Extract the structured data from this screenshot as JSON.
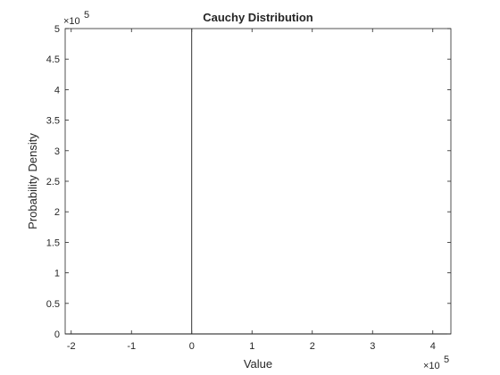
{
  "chart_data": {
    "type": "line",
    "title": "Cauchy Distribution",
    "xlabel": "Value",
    "ylabel": "Probability Density",
    "xlim": [
      -210000,
      430000
    ],
    "ylim": [
      0,
      500000
    ],
    "xticks": [
      -200000,
      -100000,
      0,
      100000,
      200000,
      300000,
      400000
    ],
    "xtick_labels": [
      "-2",
      "-1",
      "0",
      "1",
      "2",
      "3",
      "4"
    ],
    "yticks": [
      0,
      50000,
      100000,
      150000,
      200000,
      250000,
      300000,
      350000,
      400000,
      450000,
      500000
    ],
    "ytick_labels": [
      "0",
      "0.5",
      "1",
      "1.5",
      "2",
      "2.5",
      "3",
      "3.5",
      "4",
      "4.5",
      "5"
    ],
    "x_multiplier": {
      "base": "×10",
      "exponent": "5"
    },
    "y_multiplier": {
      "base": "×10",
      "exponent": "5"
    },
    "grid": false,
    "series": [
      {
        "color": "#000000",
        "x": [
          -210000,
          -1,
          0,
          1,
          430000
        ],
        "y": [
          0,
          0,
          500000,
          0,
          0
        ]
      }
    ]
  }
}
